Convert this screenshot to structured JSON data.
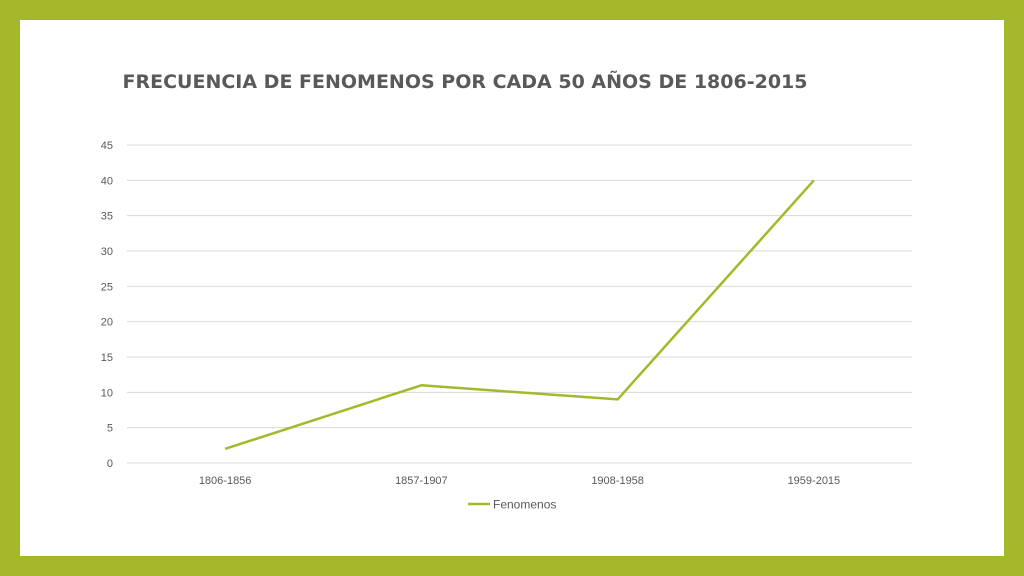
{
  "chart_data": {
    "type": "line",
    "title": "FRECUENCIA DE FENOMENOS POR CADA 50 AÑOS DE 1806-2015",
    "categories": [
      "1806-1856",
      "1857-1907",
      "1908-1958",
      "1959-2015"
    ],
    "series": [
      {
        "name": "Fenomenos",
        "values": [
          2,
          11,
          9,
          40
        ],
        "color": "#a4b82a"
      }
    ],
    "ylim": [
      0,
      45
    ],
    "yticks": [
      0,
      5,
      10,
      15,
      20,
      25,
      30,
      35,
      40,
      45
    ],
    "grid": true,
    "legend": "bottom"
  },
  "colors": {
    "frame": "#a4b82a",
    "background": "#ffffff",
    "text": "#595959",
    "grid": "#d9d9d9"
  }
}
